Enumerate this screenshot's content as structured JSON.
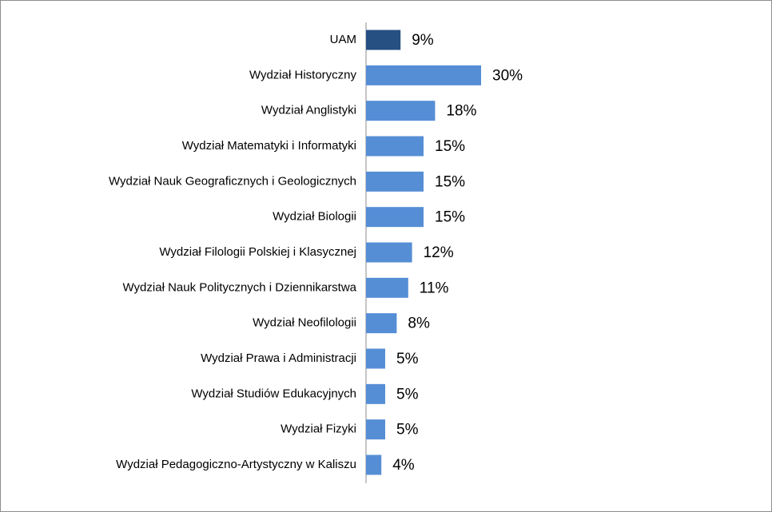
{
  "chart_data": {
    "type": "hbar",
    "categories": [
      "UAM",
      "Wydział Historyczny",
      "Wydział Anglistyki",
      "Wydział Matematyki i Informatyki",
      "Wydział Nauk Geograficznych i Geologicznych",
      "Wydział Biologii",
      "Wydział Filologii Polskiej i Klasycznej",
      "Wydział Nauk Politycznych i Dziennikarstwa",
      "Wydział Neofilologii",
      "Wydział Prawa i Administracji",
      "Wydział Studiów Edukacyjnych",
      "Wydział Fizyki",
      "Wydział Pedagogiczno-Artystyczny w Kaliszu"
    ],
    "values": [
      9,
      30,
      18,
      15,
      15,
      15,
      12,
      11,
      8,
      5,
      5,
      5,
      4
    ],
    "value_labels": [
      "9%",
      "30%",
      "18%",
      "15%",
      "15%",
      "15%",
      "12%",
      "11%",
      "8%",
      "5%",
      "5%",
      "5%",
      "4%"
    ],
    "colors": [
      "#264f82",
      "#558ed5",
      "#558ed5",
      "#558ed5",
      "#558ed5",
      "#558ed5",
      "#558ed5",
      "#558ed5",
      "#558ed5",
      "#558ed5",
      "#558ed5",
      "#558ed5",
      "#558ed5"
    ]
  }
}
